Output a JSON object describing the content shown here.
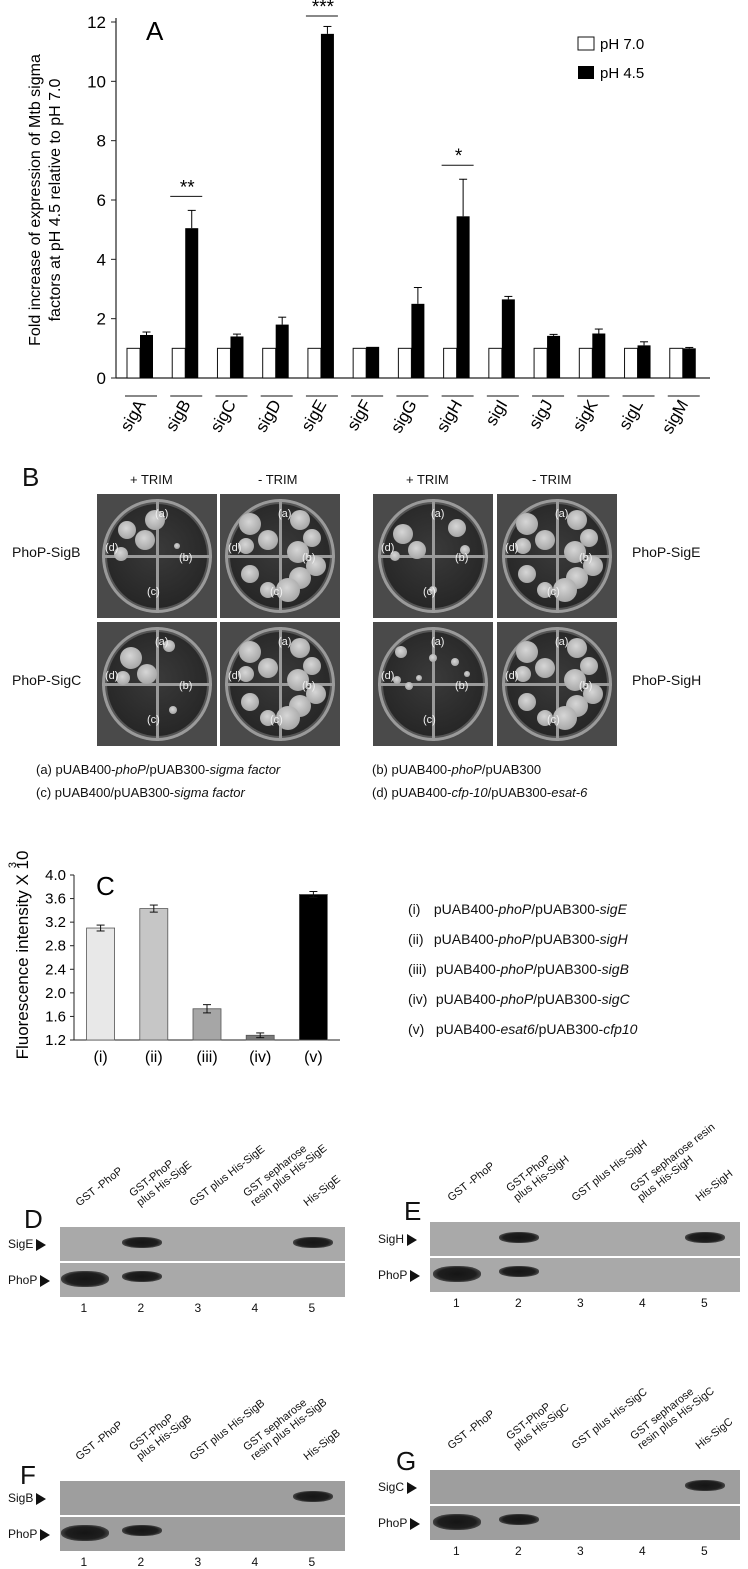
{
  "panelA": {
    "letter": "A",
    "ylabel_line1": "Fold increase of expression of Mtb sigma",
    "ylabel_line2": "factors at pH 4.5  relative to pH 7.0",
    "legend": [
      "pH 7.0",
      "pH 4.5"
    ]
  },
  "chart_data": [
    {
      "type": "bar",
      "categories": [
        "sigA",
        "sigB",
        "sigC",
        "sigD",
        "sigE",
        "sigF",
        "sigG",
        "sigH",
        "sigI",
        "sigJ",
        "sigK",
        "sigL",
        "sigM"
      ],
      "series": [
        {
          "name": "pH 7.0",
          "values": [
            1,
            1,
            1,
            1,
            1,
            1,
            1,
            1,
            1,
            1,
            1,
            1,
            1
          ]
        },
        {
          "name": "pH 4.5",
          "values": [
            1.45,
            5.05,
            1.4,
            1.8,
            11.6,
            1.05,
            2.5,
            5.45,
            2.65,
            1.42,
            1.5,
            1.1,
            1.0
          ],
          "errors": [
            0.1,
            0.6,
            0.08,
            0.25,
            0.25,
            0.0,
            0.55,
            1.25,
            0.1,
            0.05,
            0.15,
            0.12,
            0.03
          ]
        }
      ],
      "significance": [
        {
          "category": "sigB",
          "label": "**"
        },
        {
          "category": "sigE",
          "label": "***"
        },
        {
          "category": "sigH",
          "label": "*"
        }
      ],
      "ylim": [
        0,
        12
      ],
      "yticks": [
        0,
        2,
        4,
        6,
        8,
        10,
        12
      ],
      "legend_position": "top-right"
    },
    {
      "type": "bar",
      "categories": [
        "(i)",
        "(ii)",
        "(iii)",
        "(iv)",
        "(v)"
      ],
      "values": [
        3.1,
        3.43,
        1.73,
        1.28,
        3.67
      ],
      "errors": [
        0.05,
        0.06,
        0.07,
        0.04,
        0.05
      ],
      "colors": [
        "#e8e8e8",
        "#c6c6c6",
        "#a6a6a6",
        "#7a7a7a",
        "#000000"
      ],
      "ylabel": "Fluorescence intensity X 10",
      "ylabel_sup": "3",
      "ylim": [
        1.2,
        4.0
      ],
      "yticks": [
        "1.2",
        "1.6",
        "2.0",
        "2.4",
        "2.8",
        "3.2",
        "3.6",
        "4.0"
      ]
    }
  ],
  "panelB": {
    "letter": "B",
    "headers": [
      "+ TRIM",
      "- TRIM",
      "+ TRIM",
      "- TRIM"
    ],
    "rows": [
      "PhoP-SigB",
      "PhoP-SigC",
      "PhoP-SigE",
      "PhoP-SigH"
    ],
    "quadrants": [
      "(a)",
      "(b)",
      "(c)",
      "(d)"
    ],
    "legend": [
      {
        "pre": "(a) pUAB400-",
        "it1": "phoP",
        "mid": "/pUAB300-",
        "it2": "sigma factor"
      },
      {
        "pre": "(b) pUAB400-",
        "it1": "phoP",
        "mid": "/pUAB300",
        "it2": ""
      },
      {
        "pre": "(c) pUAB400/pUAB300-",
        "it1": "sigma factor",
        "mid": "",
        "it2": ""
      },
      {
        "pre": "(d) pUAB400-",
        "it1": "cfp-10",
        "mid": "/pUAB300-",
        "it2": "esat-6"
      }
    ]
  },
  "panelC": {
    "letter": "C",
    "legend": [
      {
        "num": "(i)",
        "pre": "pUAB400-",
        "it1": "phoP",
        "mid": "/pUAB300-",
        "it2": "sigE"
      },
      {
        "num": "(ii)",
        "pre": "pUAB400-",
        "it1": "phoP",
        "mid": "/pUAB300-",
        "it2": "sigH"
      },
      {
        "num": "(iii)",
        "pre": "pUAB400-",
        "it1": "phoP",
        "mid": "/pUAB300-",
        "it2": "sigB"
      },
      {
        "num": "(iv)",
        "pre": "pUAB400-",
        "it1": "phoP",
        "mid": "/pUAB300-",
        "it2": "sigC"
      },
      {
        "num": "(v)",
        "pre": "pUAB400-",
        "it1": "esat6",
        "mid": "/pUAB300-",
        "it2": "cfp10"
      }
    ]
  },
  "blots": {
    "D": {
      "letter": "D",
      "rows": [
        "SigE",
        "PhoP"
      ],
      "lanes": [
        "GST -PhoP",
        "GST-PhoP\nplus His-SigE",
        "GST plus His-SigE",
        "GST sepharose\nresin plus His-SigE",
        "His-SigE"
      ],
      "numbers": [
        "1",
        "2",
        "3",
        "4",
        "5"
      ]
    },
    "E": {
      "letter": "E",
      "rows": [
        "SigH",
        "PhoP"
      ],
      "lanes": [
        "GST -PhoP",
        "GST-PhoP\nplus His-SigH",
        "GST plus His-SigH",
        "GST sepharose resin\nplus His-SigH",
        "His-SigH"
      ],
      "numbers": [
        "1",
        "2",
        "3",
        "4",
        "5"
      ]
    },
    "F": {
      "letter": "F",
      "rows": [
        "SigB",
        "PhoP"
      ],
      "lanes": [
        "GST -PhoP",
        "GST-PhoP\nplus His-SigB",
        "GST plus His-SigB",
        "GST sepharose\nresin plus His-SigB",
        "His-SigB"
      ],
      "numbers": [
        "1",
        "2",
        "3",
        "4",
        "5"
      ]
    },
    "G": {
      "letter": "G",
      "rows": [
        "SigC",
        "PhoP"
      ],
      "lanes": [
        "GST -PhoP",
        "GST-PhoP\nplus His-SigC",
        "GST plus His-SigC",
        "GST sepharose\nresin plus His-SigC",
        "His-SigC"
      ],
      "numbers": [
        "1",
        "2",
        "3",
        "4",
        "5"
      ]
    }
  }
}
